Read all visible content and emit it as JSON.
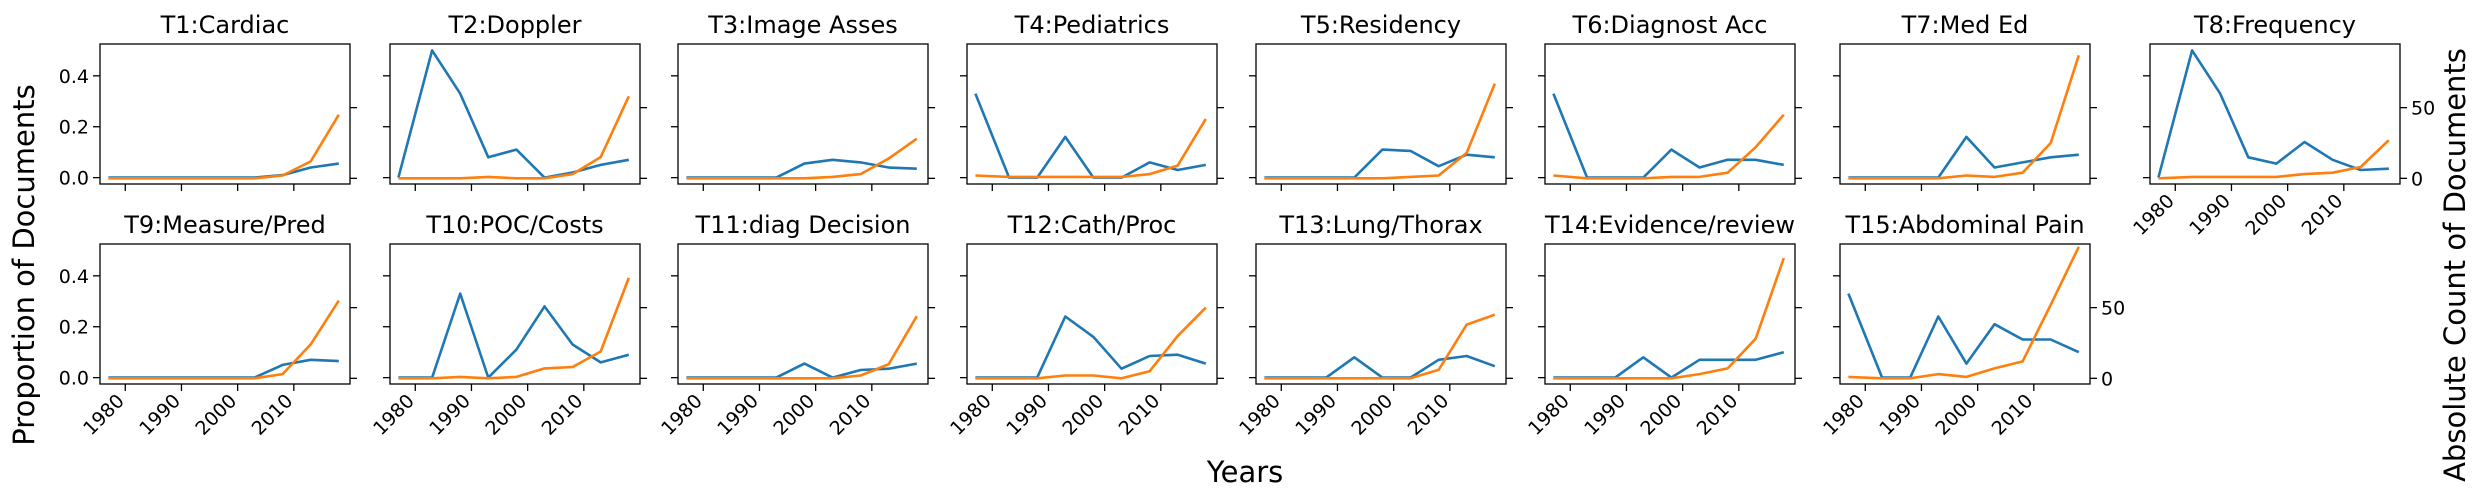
{
  "labels": {
    "left_ylabel": "Proportion of Documents",
    "right_ylabel": "Absolute Count of Documents",
    "xlabel": "Years"
  },
  "colors": {
    "proportion": "#1f77b4",
    "count": "#ff7f0e"
  },
  "chart_data": {
    "type": "line",
    "x": [
      1977,
      1983,
      1988,
      1993,
      1998,
      2003,
      2008,
      2013,
      2018
    ],
    "x_ticks": [
      1980,
      1990,
      2000,
      2010
    ],
    "xlim": [
      1975.5,
      2020
    ],
    "left_axis": {
      "ylim": [
        -0.025,
        0.525
      ],
      "ticks": [
        "0.0",
        "0.2",
        "0.4"
      ],
      "tick_values": [
        0,
        0.2,
        0.4
      ]
    },
    "right_axis": {
      "ylim": [
        -4,
        95
      ],
      "ticks": [
        "0",
        "50"
      ],
      "tick_values": [
        0,
        50
      ]
    },
    "panels": [
      {
        "title": "T1:Cardiac",
        "proportion": [
          0,
          0,
          0,
          0,
          0,
          0,
          0.01,
          0.04,
          0.055
        ],
        "count": [
          0,
          0,
          0,
          0,
          0,
          0,
          2,
          12,
          45
        ]
      },
      {
        "title": "T2:Doppler",
        "proportion": [
          0,
          0.5,
          0.33,
          0.08,
          0.11,
          0,
          0.02,
          0.05,
          0.07
        ],
        "count": [
          0,
          0,
          0,
          1,
          0,
          0,
          3,
          15,
          58
        ]
      },
      {
        "title": "T3:Image Asses",
        "proportion": [
          0,
          0,
          0,
          0,
          0.055,
          0.07,
          0.06,
          0.04,
          0.035
        ],
        "count": [
          0,
          0,
          0,
          0,
          0,
          1,
          3,
          14,
          28
        ]
      },
      {
        "title": "T4:Pediatrics",
        "proportion": [
          0.33,
          0,
          0,
          0.16,
          0,
          0,
          0.06,
          0.03,
          0.05
        ],
        "count": [
          2,
          1,
          1,
          1,
          1,
          1,
          3,
          9,
          42
        ]
      },
      {
        "title": "T5:Residency",
        "proportion": [
          0,
          0,
          0,
          0,
          0.11,
          0.105,
          0.045,
          0.09,
          0.08
        ],
        "count": [
          0,
          0,
          0,
          0,
          0,
          1,
          2,
          18,
          67
        ]
      },
      {
        "title": "T6:Diagnost Acc",
        "proportion": [
          0.33,
          0,
          0,
          0,
          0.11,
          0.04,
          0.07,
          0.07,
          0.05
        ],
        "count": [
          2,
          0,
          0,
          0,
          1,
          1,
          4,
          22,
          45
        ]
      },
      {
        "title": "T7:Med Ed",
        "proportion": [
          0,
          0,
          0,
          0,
          0.16,
          0.04,
          0.06,
          0.08,
          0.09
        ],
        "count": [
          0,
          0,
          0,
          0,
          2,
          1,
          4,
          25,
          87
        ]
      },
      {
        "title": "T8:Frequency",
        "proportion": [
          0,
          0.5,
          0.33,
          0.08,
          0.055,
          0.14,
          0.07,
          0.03,
          0.035
        ],
        "count": [
          0,
          1,
          1,
          1,
          1,
          3,
          4,
          8,
          27
        ]
      },
      {
        "title": "T9:Measure/Pred",
        "proportion": [
          0,
          0,
          0,
          0,
          0,
          0,
          0.05,
          0.07,
          0.065
        ],
        "count": [
          0,
          0,
          0,
          0,
          0,
          0,
          3,
          24,
          55
        ]
      },
      {
        "title": "T10:POC/Costs",
        "proportion": [
          0,
          0,
          0.33,
          0,
          0.11,
          0.28,
          0.13,
          0.06,
          0.09
        ],
        "count": [
          0,
          0,
          1,
          0,
          1,
          7,
          8,
          19,
          71
        ]
      },
      {
        "title": "T11:diag Decision",
        "proportion": [
          0,
          0,
          0,
          0,
          0.055,
          0,
          0.03,
          0.035,
          0.055
        ],
        "count": [
          0,
          0,
          0,
          0,
          0,
          0,
          2,
          10,
          44
        ]
      },
      {
        "title": "T12:Cath/Proc",
        "proportion": [
          0,
          0,
          0,
          0.24,
          0.16,
          0.035,
          0.085,
          0.09,
          0.055
        ],
        "count": [
          0,
          0,
          0,
          2,
          2,
          0,
          5,
          30,
          50
        ]
      },
      {
        "title": "T13:Lung/Thorax",
        "proportion": [
          0,
          0,
          0,
          0.08,
          0,
          0,
          0.07,
          0.085,
          0.045
        ],
        "count": [
          0,
          0,
          0,
          0,
          0,
          0,
          6,
          38,
          45
        ]
      },
      {
        "title": "T14:Evidence/review",
        "proportion": [
          0,
          0,
          0,
          0.08,
          0,
          0.07,
          0.07,
          0.07,
          0.1
        ],
        "count": [
          0,
          0,
          0,
          0,
          0,
          3,
          7,
          28,
          85
        ]
      },
      {
        "title": "T15:Abdominal Pain",
        "proportion": [
          0.33,
          0,
          0,
          0.24,
          0.055,
          0.21,
          0.15,
          0.15,
          0.1
        ],
        "count": [
          1,
          0,
          0,
          3,
          1,
          7,
          12,
          52,
          93
        ]
      }
    ]
  }
}
